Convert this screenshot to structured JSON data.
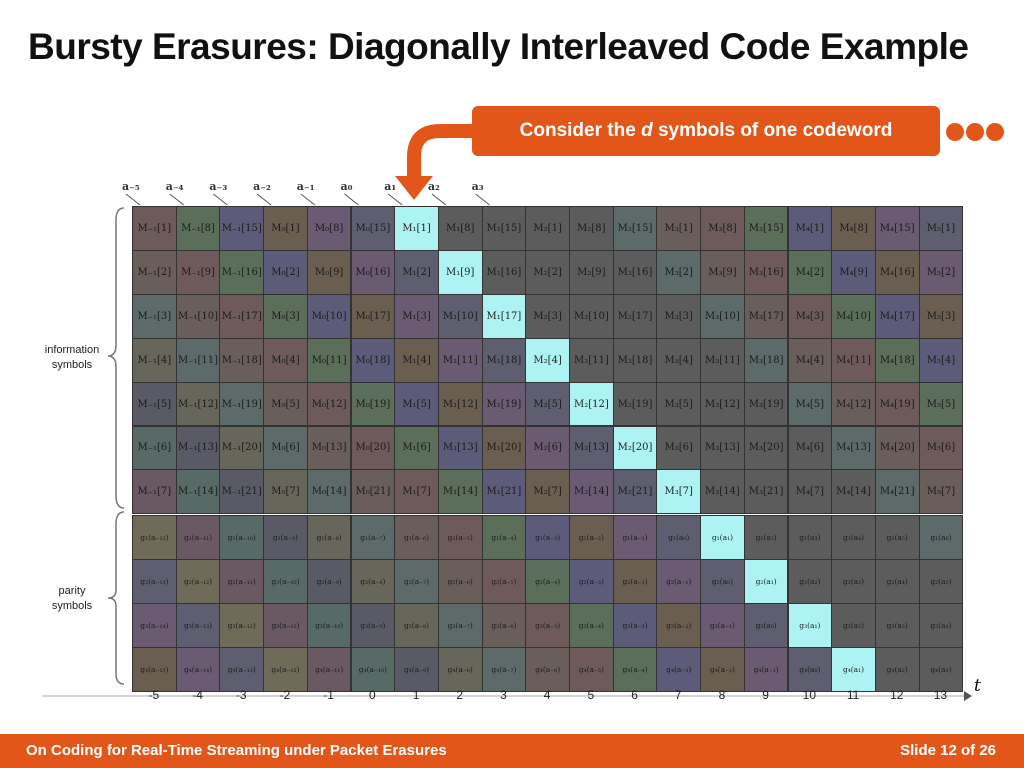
{
  "title": "Bursty Erasures: Diagonally Interleaved Code Example",
  "callout": {
    "pre": "Consider the ",
    "var": "d",
    "post": " symbols of one codeword"
  },
  "a_labels": [
    "a₋₅",
    "a₋₄",
    "a₋₃",
    "a₋₂",
    "a₋₁",
    "a₀",
    "a₁",
    "a₂",
    "a₃"
  ],
  "info_label": [
    "information",
    "symbols"
  ],
  "parity_label": [
    "parity",
    "symbols"
  ],
  "time_ticks": [
    "-5",
    "-4",
    "-3",
    "-2",
    "-1",
    "0",
    "1",
    "2",
    "3",
    "4",
    "5",
    "6",
    "7",
    "8",
    "9",
    "10",
    "11",
    "12",
    "13"
  ],
  "axis_label": "t",
  "info_rows": [
    [
      "M₋₁[1]",
      "M₋₁[8]",
      "M₋₁[15]",
      "M₀[1]",
      "M₀[8]",
      "M₀[15]",
      "M₁[1]",
      "M₁[8]",
      "M₁[15]",
      "M₂[1]",
      "M₂[8]",
      "M₂[15]",
      "M₃[1]",
      "M₃[8]",
      "M₃[15]",
      "M₄[1]",
      "M₄[8]",
      "M₄[15]",
      "M₅[1]"
    ],
    [
      "M₋₁[2]",
      "M₋₁[9]",
      "M₋₁[16]",
      "M₀[2]",
      "M₀[9]",
      "M₀[16]",
      "M₁[2]",
      "M₁[9]",
      "M₁[16]",
      "M₂[2]",
      "M₂[9]",
      "M₂[16]",
      "M₃[2]",
      "M₃[9]",
      "M₃[16]",
      "M₄[2]",
      "M₄[9]",
      "M₄[16]",
      "M₅[2]"
    ],
    [
      "M₋₁[3]",
      "M₋₁[10]",
      "M₋₁[17]",
      "M₀[3]",
      "M₀[10]",
      "M₀[17]",
      "M₁[3]",
      "M₁[10]",
      "M₁[17]",
      "M₂[3]",
      "M₂[10]",
      "M₂[17]",
      "M₃[3]",
      "M₃[10]",
      "M₃[17]",
      "M₄[3]",
      "M₄[10]",
      "M₄[17]",
      "M₅[3]"
    ],
    [
      "M₋₁[4]",
      "M₋₁[11]",
      "M₋₁[18]",
      "M₀[4]",
      "M₀[11]",
      "M₀[18]",
      "M₁[4]",
      "M₁[11]",
      "M₁[18]",
      "M₂[4]",
      "M₂[11]",
      "M₂[18]",
      "M₃[4]",
      "M₃[11]",
      "M₃[18]",
      "M₄[4]",
      "M₄[11]",
      "M₄[18]",
      "M₅[4]"
    ],
    [
      "M₋₁[5]",
      "M₋₁[12]",
      "M₋₁[19]",
      "M₀[5]",
      "M₀[12]",
      "M₀[19]",
      "M₁[5]",
      "M₁[12]",
      "M₁[19]",
      "M₂[5]",
      "M₂[12]",
      "M₂[19]",
      "M₃[5]",
      "M₃[12]",
      "M₃[19]",
      "M₄[5]",
      "M₄[12]",
      "M₄[19]",
      "M₅[5]"
    ],
    [
      "M₋₁[6]",
      "M₋₁[13]",
      "M₋₁[20]",
      "M₀[6]",
      "M₀[13]",
      "M₀[20]",
      "M₁[6]",
      "M₁[13]",
      "M₁[20]",
      "M₂[6]",
      "M₂[13]",
      "M₂[20]",
      "M₃[6]",
      "M₃[13]",
      "M₃[20]",
      "M₄[6]",
      "M₄[13]",
      "M₄[20]",
      "M₅[6]"
    ],
    [
      "M₋₁[7]",
      "M₋₁[14]",
      "M₋₁[21]",
      "M₀[7]",
      "M₀[14]",
      "M₀[21]",
      "M₁[7]",
      "M₁[14]",
      "M₁[21]",
      "M₂[7]",
      "M₂[14]",
      "M₂[21]",
      "M₃[7]",
      "M₃[14]",
      "M₃[21]",
      "M₄[7]",
      "M₄[14]",
      "M₄[21]",
      "M₅[7]"
    ]
  ],
  "parity_rows": [
    [
      "g₁(a₋₁₂)",
      "g₁(a₋₁₁)",
      "g₁(a₋₁₀)",
      "g₁(a₋₉)",
      "g₁(a₋₈)",
      "g₁(a₋₇)",
      "g₁(a₋₆)",
      "g₁(a₋₅)",
      "g₁(a₋₄)",
      "g₁(a₋₃)",
      "g₁(a₋₂)",
      "g₁(a₋₁)",
      "g₁(a₀)",
      "g₁(a₁)",
      "g₁(a₂)",
      "g₁(a₃)",
      "g₁(a₄)",
      "g₁(a₅)",
      "g₁(a₆)"
    ],
    [
      "g₂(a₋₁₃)",
      "g₂(a₋₁₂)",
      "g₂(a₋₁₁)",
      "g₂(a₋₁₀)",
      "g₂(a₋₉)",
      "g₂(a₋₈)",
      "g₂(a₋₇)",
      "g₂(a₋₆)",
      "g₂(a₋₅)",
      "g₂(a₋₄)",
      "g₂(a₋₃)",
      "g₂(a₋₂)",
      "g₂(a₋₁)",
      "g₂(a₀)",
      "g₂(a₁)",
      "g₂(a₂)",
      "g₂(a₃)",
      "g₂(a₄)",
      "g₂(a₅)"
    ],
    [
      "g₃(a₋₁₄)",
      "g₃(a₋₁₃)",
      "g₃(a₋₁₂)",
      "g₃(a₋₁₁)",
      "g₃(a₋₁₀)",
      "g₃(a₋₉)",
      "g₃(a₋₈)",
      "g₃(a₋₇)",
      "g₃(a₋₆)",
      "g₃(a₋₅)",
      "g₃(a₋₄)",
      "g₃(a₋₃)",
      "g₃(a₋₂)",
      "g₃(a₋₁)",
      "g₃(a₀)",
      "g₃(a₁)",
      "g₃(a₂)",
      "g₃(a₃)",
      "g₃(a₄)"
    ],
    [
      "g₄(a₋₁₅)",
      "g₄(a₋₁₄)",
      "g₄(a₋₁₃)",
      "g₄(a₋₁₂)",
      "g₄(a₋₁₁)",
      "g₄(a₋₁₀)",
      "g₄(a₋₉)",
      "g₄(a₋₈)",
      "g₄(a₋₇)",
      "g₄(a₋₆)",
      "g₄(a₋₅)",
      "g₄(a₋₄)",
      "g₄(a₋₃)",
      "g₄(a₋₂)",
      "g₄(a₋₁)",
      "g₄(a₀)",
      "g₄(a₁)",
      "g₄(a₂)",
      "g₄(a₃)"
    ]
  ],
  "colors": {
    "accent": "#e2561a",
    "highlight": "#aef3f3",
    "cycle": [
      "#6e5a5a",
      "#5a6e5a",
      "#5c5c7a",
      "#6a5e50",
      "#6a5a72",
      "#5e5e70",
      "#706a58",
      "#6a5862",
      "#586a66",
      "#5a5a66",
      "#66665a",
      "#5c6a6a",
      "#6a5e5a"
    ],
    "gray": "#5c5c5c"
  },
  "highlighted_cells": [
    [
      0,
      6
    ],
    [
      1,
      7
    ],
    [
      2,
      8
    ],
    [
      3,
      9
    ],
    [
      4,
      10
    ],
    [
      5,
      11
    ],
    [
      6,
      12
    ],
    [
      7,
      13
    ],
    [
      8,
      14
    ],
    [
      9,
      15
    ],
    [
      10,
      16
    ]
  ],
  "footer": {
    "left": "On Coding for Real-Time Streaming under Packet Erasures",
    "right": "Slide 12 of 26"
  }
}
